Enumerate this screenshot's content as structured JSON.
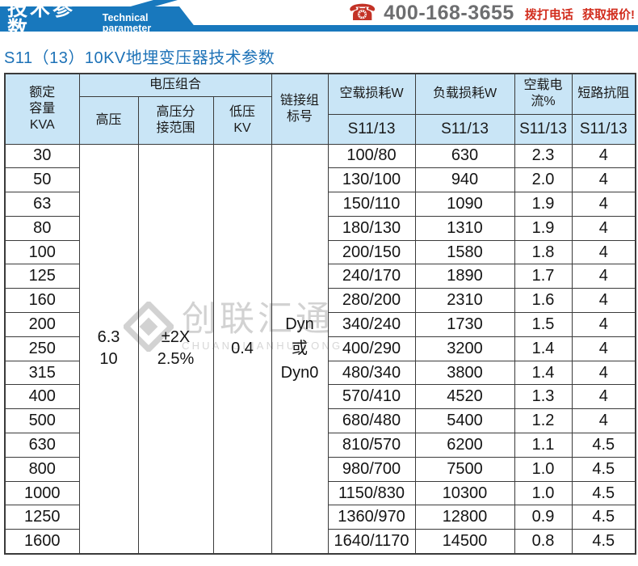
{
  "banner": {
    "title_cn": "技术参数",
    "title_en": "Technical parameter"
  },
  "contact": {
    "phone_icon": "telephone-icon",
    "phone": "400-168-3655",
    "cta": "拨打电话 获取报价!"
  },
  "page_title": "S11（13）10KV地埋变压器技术参数",
  "table": {
    "header": {
      "capacity": "额定\n容量\nKVA",
      "voltage_group": "电压组合",
      "hv": "高压",
      "hv_tap": "高压分\n接范围",
      "lv": "低压\nKV",
      "vector_group": "链接组\n标号",
      "no_load_loss": "空载损耗W",
      "load_loss": "负载损耗W",
      "no_load_current": "空载电流%",
      "impedance": "短路抗阻",
      "model": "S11/13"
    },
    "merged": {
      "hv": "6.3\n10",
      "hv_tap": "±2X\n2.5%",
      "lv": "0.4",
      "vector_group": "Dyn\n或\nDyn0"
    },
    "rows": [
      [
        "30",
        "100/80",
        "630",
        "2.3",
        "4"
      ],
      [
        "50",
        "130/100",
        "940",
        "2.0",
        "4"
      ],
      [
        "63",
        "150/110",
        "1090",
        "1.9",
        "4"
      ],
      [
        "80",
        "180/130",
        "1310",
        "1.9",
        "4"
      ],
      [
        "100",
        "200/150",
        "1580",
        "1.8",
        "4"
      ],
      [
        "125",
        "240/170",
        "1890",
        "1.7",
        "4"
      ],
      [
        "160",
        "280/200",
        "2310",
        "1.6",
        "4"
      ],
      [
        "200",
        "340/240",
        "1730",
        "1.5",
        "4"
      ],
      [
        "250",
        "400/290",
        "3200",
        "1.4",
        "4"
      ],
      [
        "315",
        "480/340",
        "3800",
        "1.4",
        "4"
      ],
      [
        "400",
        "570/410",
        "4520",
        "1.3",
        "4"
      ],
      [
        "500",
        "680/480",
        "5400",
        "1.2",
        "4"
      ],
      [
        "630",
        "810/570",
        "6200",
        "1.1",
        "4.5"
      ],
      [
        "800",
        "980/700",
        "7500",
        "1.0",
        "4.5"
      ],
      [
        "1000",
        "1150/830",
        "10300",
        "1.0",
        "4.5"
      ],
      [
        "1250",
        "1360/970",
        "12800",
        "0.9",
        "4.5"
      ],
      [
        "1600",
        "1640/1170",
        "14500",
        "0.8",
        "4.5"
      ]
    ]
  },
  "watermark": {
    "cn": "创联汇通",
    "en": "CHUANGLIANHUITONG"
  },
  "colors": {
    "brand_blue": "#1878bd",
    "title_blue": "#1d72b7",
    "header_cell_blue": "#c9e5f6",
    "accent_red": "#d22d1e",
    "phone_gray": "#6d6e70",
    "border_dark": "#3b3b3b",
    "watermark_gray": "#d2d2d2"
  }
}
